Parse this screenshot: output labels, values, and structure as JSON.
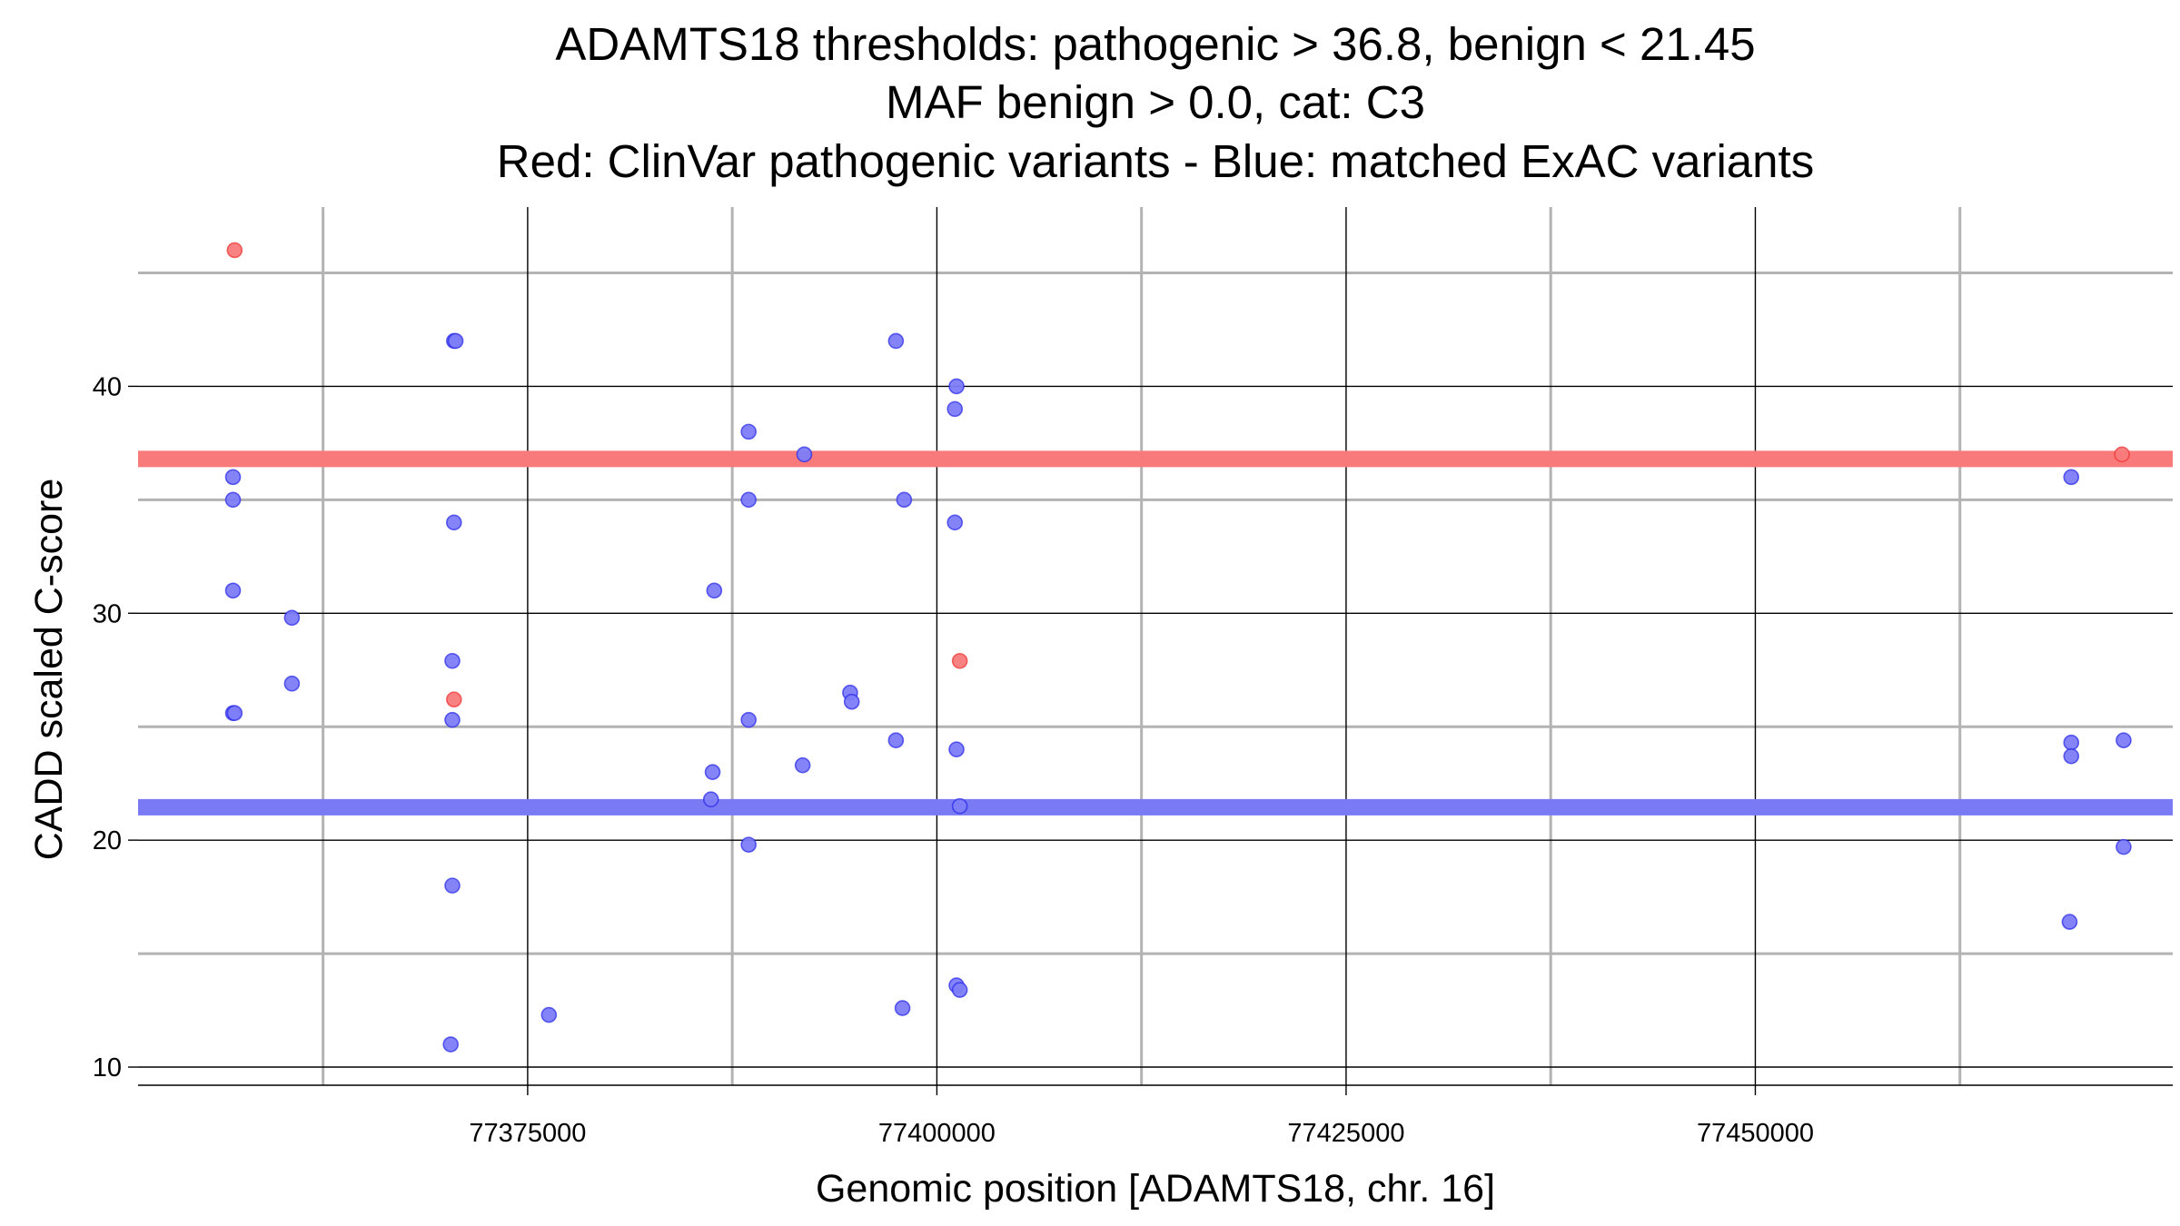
{
  "chart_data": {
    "type": "scatter",
    "title_lines": [
      "ADAMTS18 thresholds: pathogenic > 36.8, benign < 21.45",
      "MAF benign > 0.0, cat: C3",
      "Red: ClinVar pathogenic variants - Blue: matched ExAC variants"
    ],
    "xlabel": "Genomic position [ADAMTS18, chr. 16]",
    "ylabel": "CADD scaled C-score",
    "xlim": [
      77351200,
      77475500
    ],
    "ylim": [
      9.2,
      47.9
    ],
    "x_major_ticks": [
      77375000,
      77400000,
      77425000,
      77450000
    ],
    "x_minor_ticks": [
      77362500,
      77387500,
      77412500,
      77437500,
      77462500
    ],
    "y_major_ticks": [
      10,
      20,
      30,
      40
    ],
    "y_minor_ticks": [
      15,
      25,
      35,
      45
    ],
    "thresholds": [
      {
        "name": "pathogenic",
        "value": 36.8,
        "color": "#f87a7a"
      },
      {
        "name": "benign",
        "value": 21.45,
        "color": "#7a7af5"
      }
    ],
    "series": [
      {
        "name": "ClinVar pathogenic variants",
        "color": "#f87a7a",
        "edge": "#ee3030",
        "points": [
          [
            77357100,
            46.0
          ],
          [
            77370500,
            26.2
          ],
          [
            77401400,
            27.9
          ],
          [
            77472400,
            37.0
          ]
        ]
      },
      {
        "name": "matched ExAC variants",
        "color": "#7d7df8",
        "edge": "#2727e8",
        "points": [
          [
            77357000,
            36.0
          ],
          [
            77357000,
            35.0
          ],
          [
            77357000,
            31.0
          ],
          [
            77357000,
            25.6
          ],
          [
            77357100,
            25.6
          ],
          [
            77360600,
            29.8
          ],
          [
            77360600,
            26.9
          ],
          [
            77370500,
            42.0
          ],
          [
            77370600,
            42.0
          ],
          [
            77370500,
            34.0
          ],
          [
            77370400,
            27.9
          ],
          [
            77370400,
            25.3
          ],
          [
            77370400,
            18.0
          ],
          [
            77370300,
            11.0
          ],
          [
            77376300,
            12.3
          ],
          [
            77386400,
            31.0
          ],
          [
            77386300,
            23.0
          ],
          [
            77386200,
            21.8
          ],
          [
            77388500,
            38.0
          ],
          [
            77388500,
            35.0
          ],
          [
            77388500,
            25.3
          ],
          [
            77388500,
            19.8
          ],
          [
            77391900,
            37.0
          ],
          [
            77391800,
            23.3
          ],
          [
            77394700,
            26.5
          ],
          [
            77394800,
            26.1
          ],
          [
            77397500,
            42.0
          ],
          [
            77397500,
            24.4
          ],
          [
            77398000,
            35.0
          ],
          [
            77397900,
            12.6
          ],
          [
            77401200,
            40.0
          ],
          [
            77401100,
            39.0
          ],
          [
            77401100,
            34.0
          ],
          [
            77401200,
            24.0
          ],
          [
            77401400,
            21.5
          ],
          [
            77401200,
            13.6
          ],
          [
            77401400,
            13.4
          ],
          [
            77469300,
            36.0
          ],
          [
            77469300,
            24.3
          ],
          [
            77469300,
            23.7
          ],
          [
            77469200,
            16.4
          ],
          [
            77472500,
            24.4
          ],
          [
            77472500,
            19.7
          ]
        ]
      }
    ]
  }
}
